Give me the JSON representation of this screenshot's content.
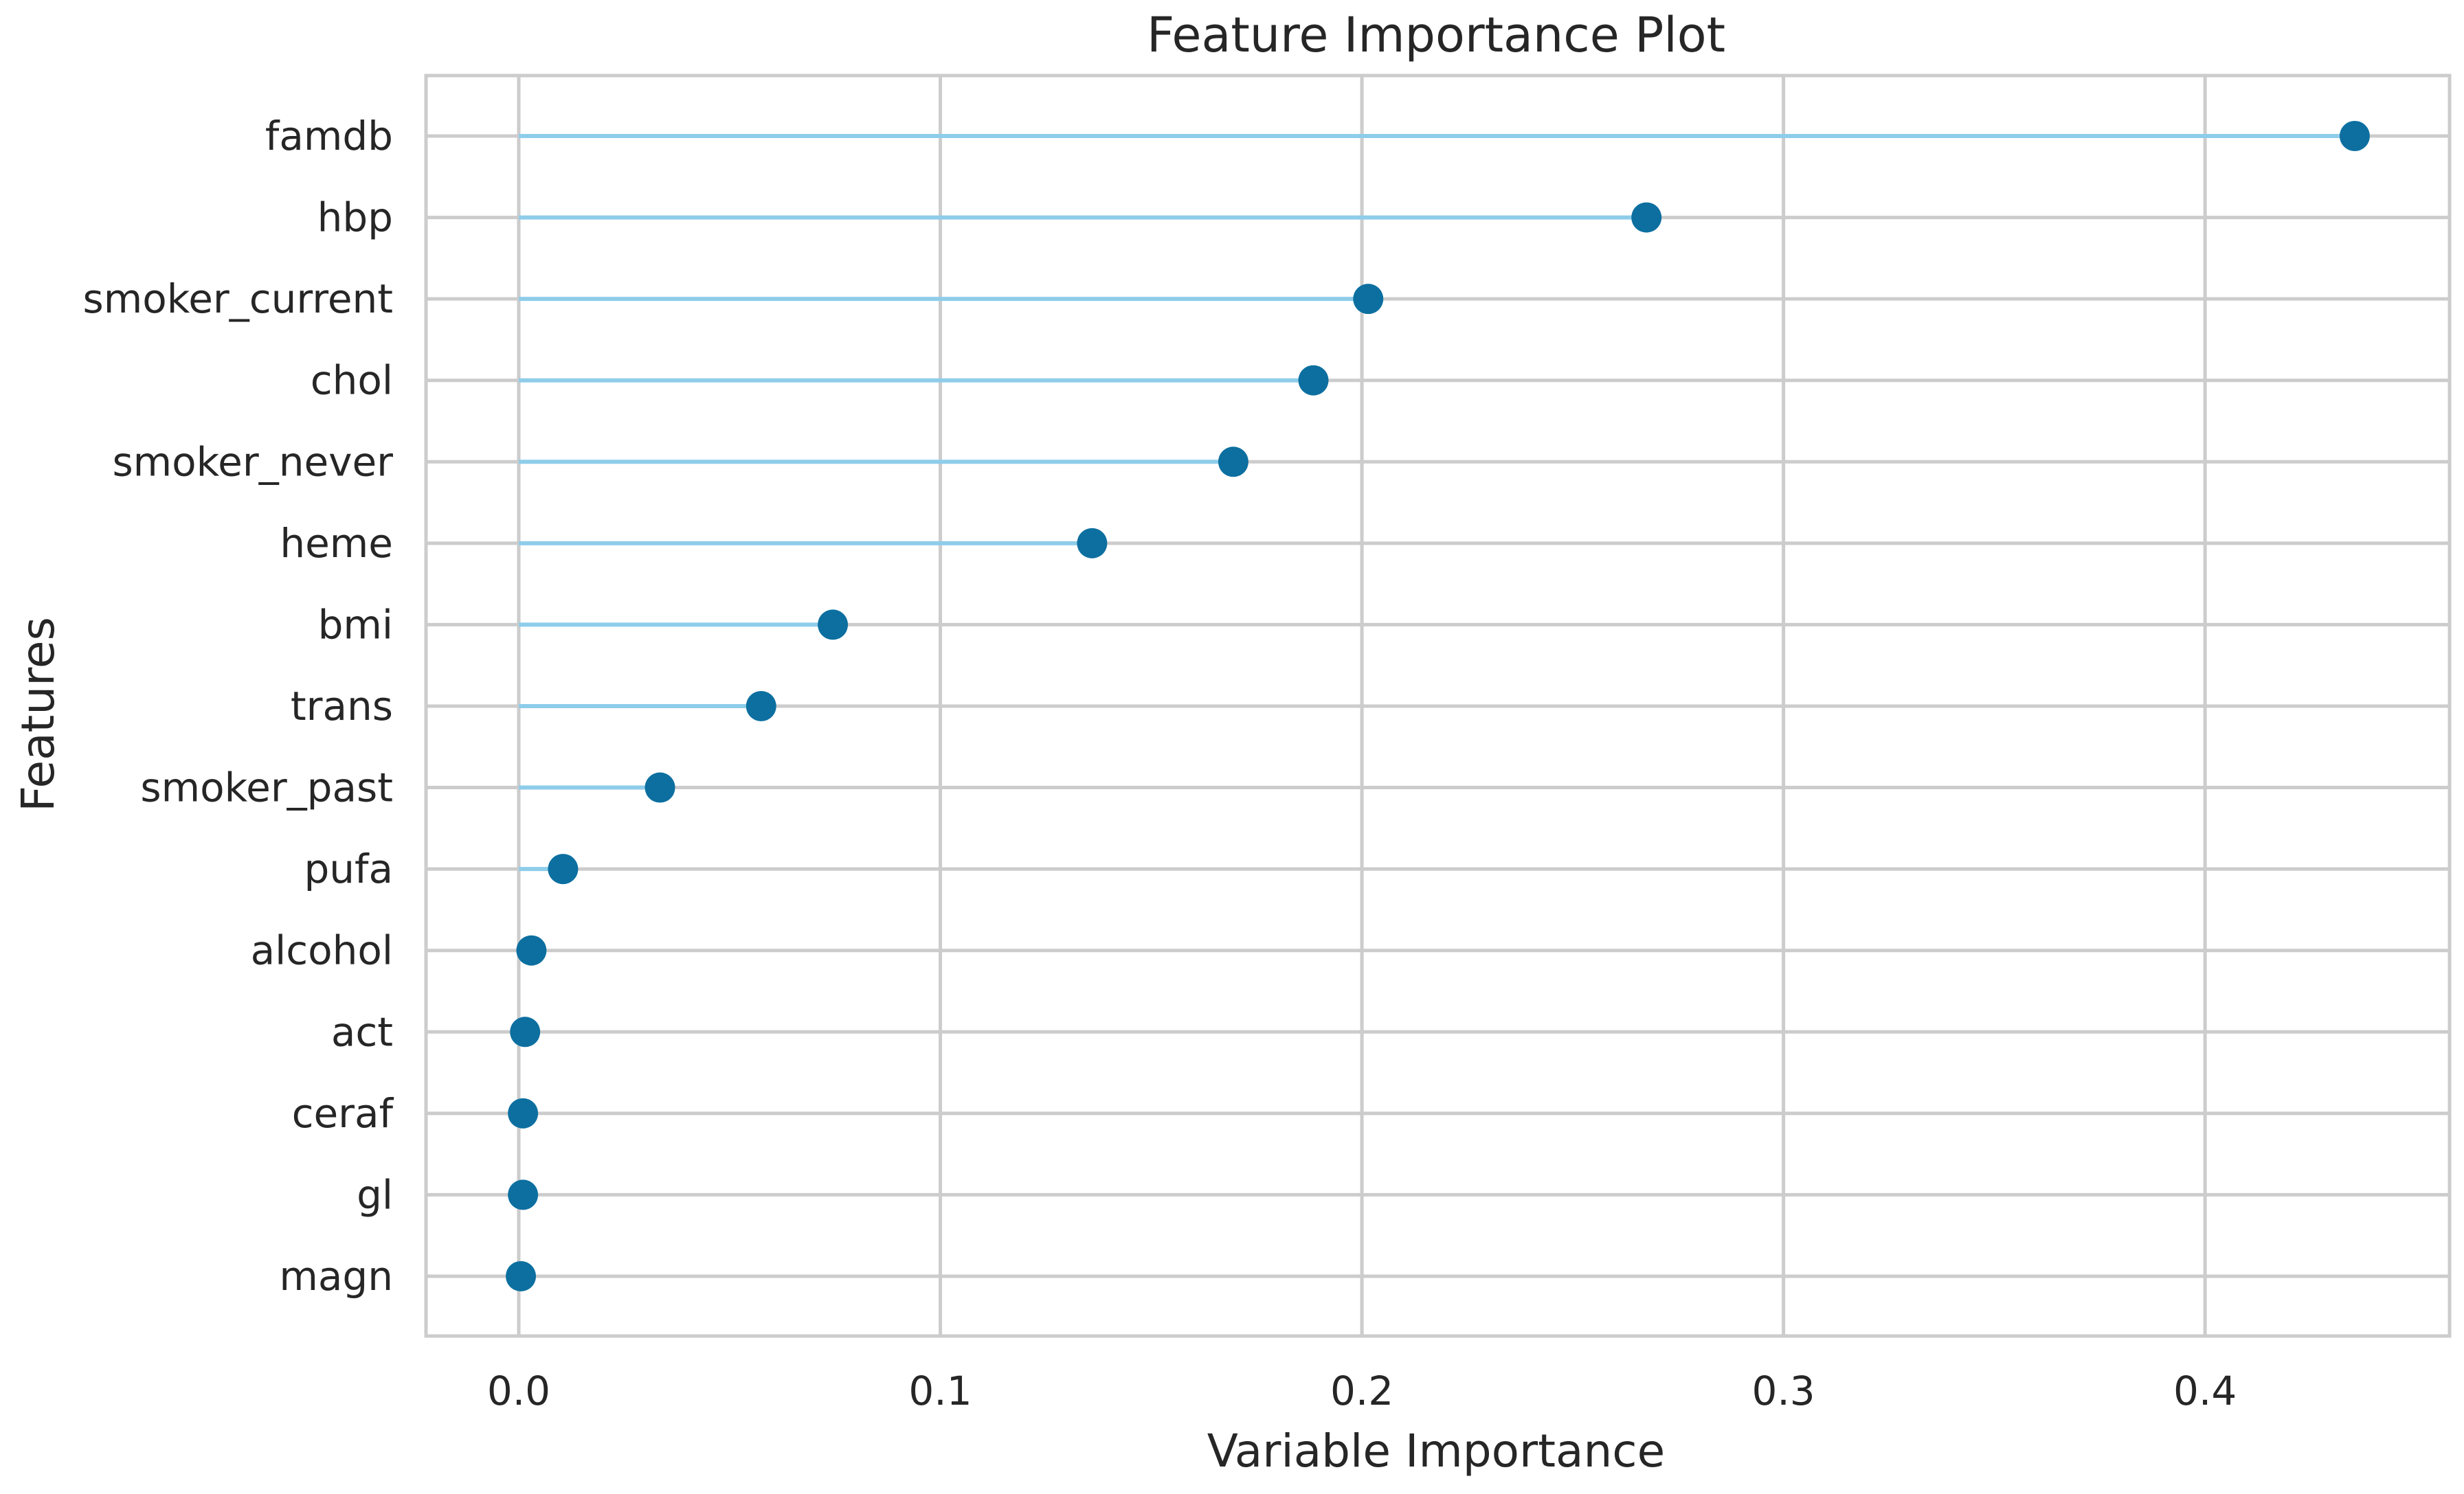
{
  "chart_data": {
    "type": "scatter",
    "subtype": "lollipop-horizontal",
    "title": "Feature Importance Plot",
    "xlabel": "Variable Importance",
    "ylabel": "Features",
    "xlim": [
      -0.022,
      0.458
    ],
    "xticks": [
      0.0,
      0.1,
      0.2,
      0.3,
      0.4
    ],
    "xtick_labels": [
      "0.0",
      "0.1",
      "0.2",
      "0.3",
      "0.4"
    ],
    "grid": true,
    "legend": "none",
    "stem_color": "#8ecdea",
    "marker_color": "#0c6fa0",
    "grid_color": "#cccccc",
    "categories": [
      "famdb",
      "hbp",
      "smoker_current",
      "chol",
      "smoker_never",
      "heme",
      "bmi",
      "trans",
      "smoker_past",
      "pufa",
      "alcohol",
      "act",
      "ceraf",
      "gl",
      "magn"
    ],
    "values": [
      0.4355,
      0.2675,
      0.2015,
      0.1885,
      0.1695,
      0.136,
      0.0745,
      0.0575,
      0.0335,
      0.0105,
      0.003,
      0.0015,
      0.001,
      0.001,
      0.0005
    ]
  }
}
